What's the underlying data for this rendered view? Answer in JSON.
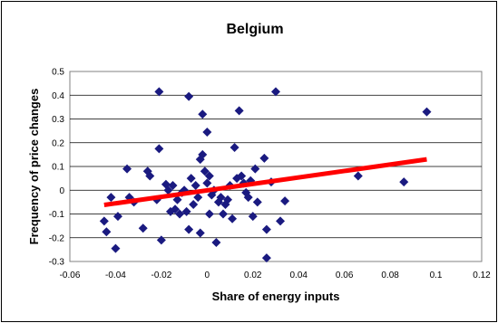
{
  "chart_data": {
    "type": "scatter",
    "title": "Belgium",
    "xlabel": "Share of energy inputs",
    "ylabel": "Frequency of price changes",
    "xlim": [
      -0.06,
      0.12
    ],
    "ylim": [
      -0.3,
      0.5
    ],
    "x_ticks": [
      "-0.06",
      "-0.04",
      "-0.02",
      "0",
      "0.02",
      "0.04",
      "0.06",
      "0.08",
      "0.1",
      "0.12"
    ],
    "y_ticks": [
      "0.5",
      "0.4",
      "0.3",
      "0.2",
      "0.1",
      "0",
      "-0.1",
      "-0.2",
      "-0.3"
    ],
    "x_tick_values": [
      -0.06,
      -0.04,
      -0.02,
      0,
      0.02,
      0.04,
      0.06,
      0.08,
      0.1,
      0.12
    ],
    "y_tick_values": [
      0.5,
      0.4,
      0.3,
      0.2,
      0.1,
      0,
      -0.1,
      -0.2,
      -0.3
    ],
    "grid": "horizontal",
    "legend": "none",
    "colors": {
      "points": "#1a1a80",
      "trend": "#ff0000",
      "plot_area": "#ffffff",
      "gridline": "#000000",
      "frame": "#808080"
    },
    "series": [
      {
        "points": [
          [
            -0.045,
            -0.13
          ],
          [
            -0.044,
            -0.175
          ],
          [
            -0.042,
            -0.03
          ],
          [
            -0.04,
            -0.245
          ],
          [
            -0.039,
            -0.11
          ],
          [
            -0.035,
            0.09
          ],
          [
            -0.034,
            -0.03
          ],
          [
            -0.032,
            -0.05
          ],
          [
            -0.028,
            -0.16
          ],
          [
            -0.026,
            0.08
          ],
          [
            -0.025,
            0.06
          ],
          [
            -0.022,
            -0.04
          ],
          [
            -0.021,
            0.175
          ],
          [
            -0.02,
            -0.21
          ],
          [
            -0.021,
            0.415
          ],
          [
            -0.018,
            0.025
          ],
          [
            -0.017,
            0.0
          ],
          [
            -0.016,
            -0.09
          ],
          [
            -0.015,
            0.02
          ],
          [
            -0.014,
            -0.08
          ],
          [
            -0.013,
            -0.04
          ],
          [
            -0.012,
            -0.1
          ],
          [
            -0.011,
            -0.01
          ],
          [
            -0.01,
            0.0
          ],
          [
            -0.009,
            -0.09
          ],
          [
            -0.008,
            0.395
          ],
          [
            -0.008,
            -0.165
          ],
          [
            -0.007,
            0.05
          ],
          [
            -0.006,
            -0.06
          ],
          [
            -0.005,
            0.02
          ],
          [
            -0.004,
            -0.03
          ],
          [
            -0.003,
            0.13
          ],
          [
            -0.003,
            -0.18
          ],
          [
            -0.002,
            0.32
          ],
          [
            -0.002,
            0.15
          ],
          [
            -0.001,
            0.08
          ],
          [
            0.0,
            0.03
          ],
          [
            0.0,
            0.245
          ],
          [
            0.001,
            0.06
          ],
          [
            0.001,
            -0.1
          ],
          [
            0.002,
            -0.02
          ],
          [
            0.003,
            0.0
          ],
          [
            0.004,
            -0.22
          ],
          [
            0.005,
            -0.05
          ],
          [
            0.006,
            -0.03
          ],
          [
            0.007,
            -0.1
          ],
          [
            0.008,
            -0.06
          ],
          [
            0.009,
            -0.04
          ],
          [
            0.01,
            0.02
          ],
          [
            0.011,
            -0.12
          ],
          [
            0.012,
            0.18
          ],
          [
            0.013,
            0.05
          ],
          [
            0.014,
            0.335
          ],
          [
            0.015,
            0.06
          ],
          [
            0.016,
            0.03
          ],
          [
            0.017,
            -0.01
          ],
          [
            0.018,
            -0.03
          ],
          [
            0.019,
            0.04
          ],
          [
            0.02,
            -0.11
          ],
          [
            0.021,
            0.09
          ],
          [
            0.022,
            -0.05
          ],
          [
            0.025,
            0.135
          ],
          [
            0.026,
            -0.165
          ],
          [
            0.026,
            -0.285
          ],
          [
            0.028,
            0.035
          ],
          [
            0.03,
            0.415
          ],
          [
            0.032,
            -0.13
          ],
          [
            0.034,
            -0.045
          ],
          [
            0.066,
            0.06
          ],
          [
            0.086,
            0.035
          ],
          [
            0.096,
            0.33
          ]
        ]
      }
    ],
    "trendline": {
      "x": [
        -0.045,
        0.096
      ],
      "y": [
        -0.062,
        0.13
      ]
    }
  }
}
